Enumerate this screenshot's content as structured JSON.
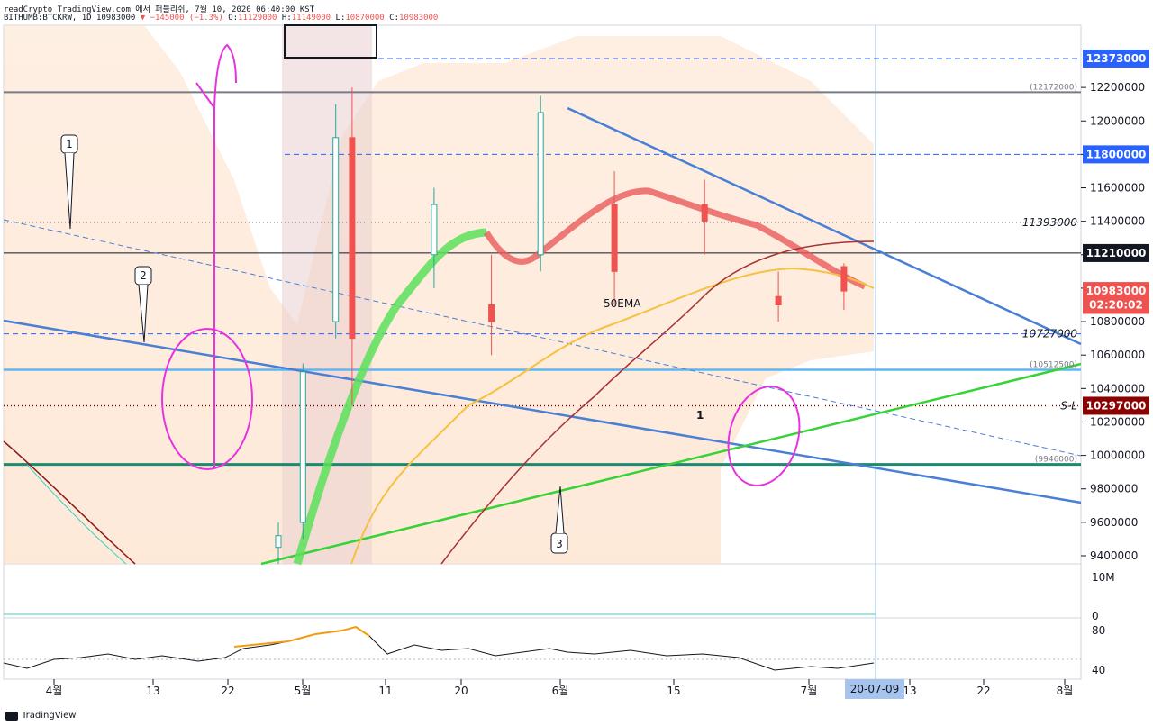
{
  "header": {
    "line1": "readCrypto TradingView.com 에서 퍼블리쉬, 7월 10, 2020 06:40:00 KST",
    "symbol": "BITHUMB:BTCKRW, 1D 10983000",
    "change": "▼ −145000 (−1.3%)",
    "ohlc_o": "O:",
    "ohlc_o_val": "11129000",
    "ohlc_h": " H:",
    "ohlc_h_val": "11149000",
    "ohlc_l": " L:",
    "ohlc_l_val": "10870000",
    "ohlc_c": " C:",
    "ohlc_c_val": "10983000"
  },
  "price_axis": {
    "ticks": [
      "12200000",
      "12000000",
      "11800000",
      "11600000",
      "11400000",
      "11200000",
      "11000000",
      "10800000",
      "10600000",
      "10400000",
      "10200000",
      "10000000",
      "9800000",
      "9600000",
      "9400000"
    ],
    "labels": [
      {
        "text": "12373000",
        "price": 12373000,
        "bg": "#2962ff"
      },
      {
        "text": "11800000",
        "price": 11800000,
        "bg": "#2962ff"
      },
      {
        "text": "11210000",
        "price": 11210000,
        "bg": "#131722"
      },
      {
        "text": "10983000",
        "price": 10983000,
        "bg": "#ef5350"
      },
      {
        "text": "02:20:02",
        "price": 10900000,
        "bg": "#ef5350"
      },
      {
        "text": "10297000",
        "price": 10297000,
        "bg": "#8b0000"
      }
    ],
    "inline_labels": [
      {
        "text": "11393000",
        "price": 11393000
      },
      {
        "text": "10727000",
        "price": 10727000
      },
      {
        "text": "(12172000)",
        "price": 12172000
      },
      {
        "text": "(10512500)",
        "price": 10512500
      },
      {
        "text": "(9946000)",
        "price": 9946000
      },
      {
        "text": "S-L",
        "price": 10297000
      }
    ]
  },
  "volume_axis": {
    "ticks": [
      "10M",
      "0"
    ]
  },
  "rsi_axis": {
    "ticks": [
      "80",
      "40"
    ]
  },
  "time_axis": {
    "ticks": [
      "4월",
      "13",
      "22",
      "5월",
      "11",
      "20",
      "6월",
      "15",
      "7월",
      "13",
      "22",
      "8월"
    ],
    "current": "20-07-09"
  },
  "annotations": {
    "callout_1": "1",
    "callout_2": "2",
    "callout_3": "3",
    "ema_label": "50EMA",
    "mark_1": "1"
  },
  "footer": {
    "brand": "TradingView"
  },
  "chart_data": {
    "type": "candlestick",
    "title": "BITHUMB:BTCKRW, 1D",
    "ylim": [
      9350000,
      12450000
    ],
    "last_price": 10983000,
    "horizontal_levels": [
      12373000,
      12172000,
      11800000,
      11393000,
      11210000,
      10727000,
      10512500,
      10297000,
      9946000
    ],
    "candles_approx": [
      {
        "date": "05-01",
        "o": 9450000,
        "h": 9600000,
        "l": 9350000,
        "c": 9520000
      },
      {
        "date": "05-04",
        "o": 9600000,
        "h": 10550000,
        "l": 9500000,
        "c": 10500000
      },
      {
        "date": "05-08",
        "o": 10800000,
        "h": 12100000,
        "l": 10700000,
        "c": 11900000
      },
      {
        "date": "05-10",
        "o": 11900000,
        "h": 12200000,
        "l": 10300000,
        "c": 10700000
      },
      {
        "date": "05-20",
        "o": 11200000,
        "h": 11600000,
        "l": 11000000,
        "c": 11500000
      },
      {
        "date": "05-27",
        "o": 10900000,
        "h": 11200000,
        "l": 10600000,
        "c": 10800000
      },
      {
        "date": "06-02",
        "o": 11200000,
        "h": 12150000,
        "l": 11100000,
        "c": 12050000
      },
      {
        "date": "06-11",
        "o": 11500000,
        "h": 11700000,
        "l": 10900000,
        "c": 11100000
      },
      {
        "date": "06-22",
        "o": 11500000,
        "h": 11650000,
        "l": 11200000,
        "c": 11400000
      },
      {
        "date": "07-01",
        "o": 10950000,
        "h": 11100000,
        "l": 10800000,
        "c": 10900000
      },
      {
        "date": "07-09",
        "o": 11129000,
        "h": 11149000,
        "l": 10870000,
        "c": 10983000
      }
    ]
  }
}
